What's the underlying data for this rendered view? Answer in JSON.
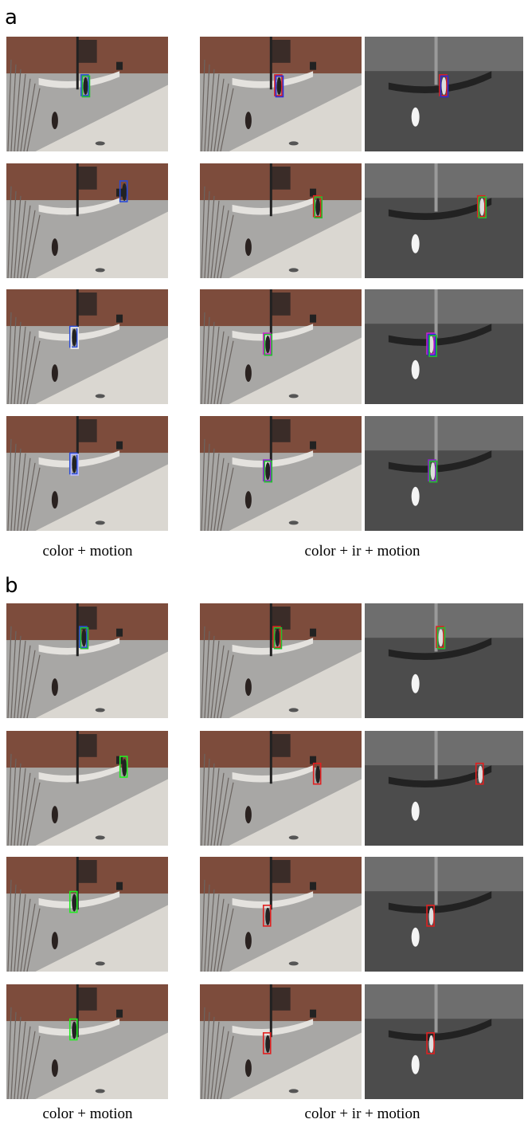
{
  "panels": [
    {
      "label": "a",
      "captions": [
        "color + motion",
        "color + ir + motion"
      ]
    },
    {
      "label": "b",
      "captions": [
        "color + motion",
        "color + ir + motion"
      ]
    }
  ]
}
